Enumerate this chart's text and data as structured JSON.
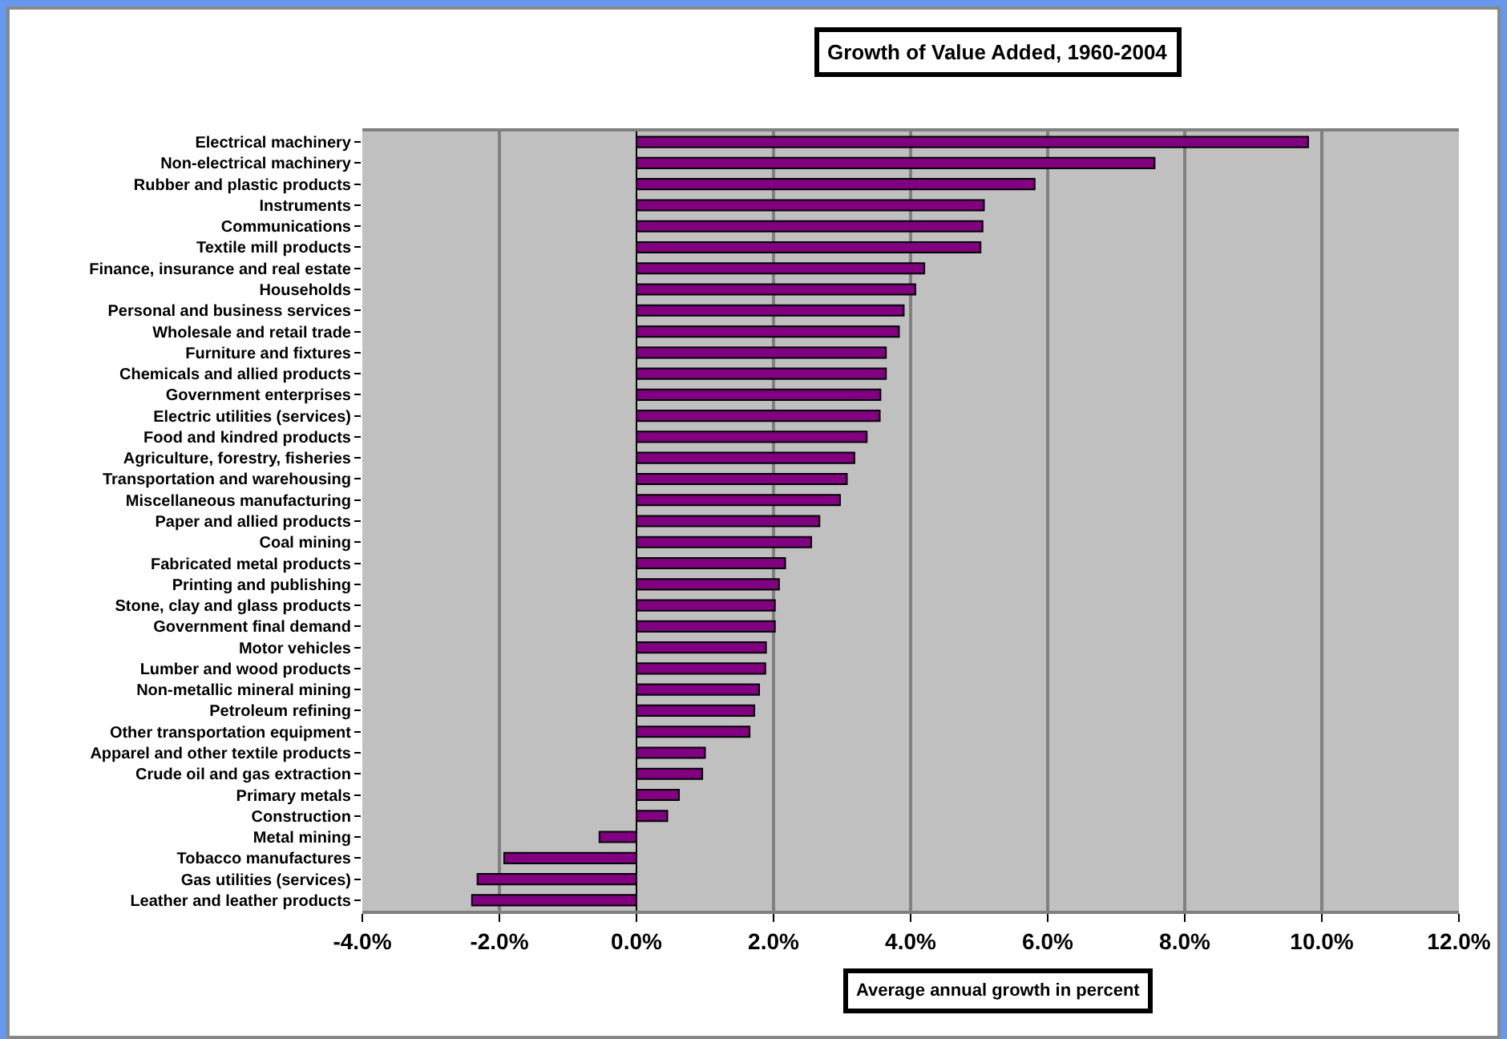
{
  "chart_data": {
    "type": "bar",
    "orientation": "horizontal",
    "title": "Growth of Value Added, 1960-2004",
    "xlabel": "Average annual growth in percent",
    "categories": [
      "Electrical machinery",
      "Non-electrical machinery",
      "Rubber and plastic products",
      "Instruments",
      "Communications",
      "Textile mill products",
      "Finance, insurance and real estate",
      "Households",
      "Personal and business services",
      "Wholesale and retail trade",
      "Furniture and fixtures",
      "Chemicals and allied products",
      "Government enterprises",
      "Electric utilities (services)",
      "Food and kindred products",
      "Agriculture, forestry, fisheries",
      "Transportation and warehousing",
      "Miscellaneous manufacturing",
      "Paper and allied products",
      "Coal mining",
      "Fabricated metal products",
      "Printing and publishing",
      "Stone, clay and glass products",
      "Government final demand",
      "Motor vehicles",
      "Lumber and wood products",
      "Non-metallic mineral mining",
      "Petroleum refining",
      "Other transportation equipment",
      "Apparel and other textile products",
      "Crude oil and gas extraction",
      "Primary metals",
      "Construction",
      "Metal mining",
      "Tobacco manufactures",
      "Gas utilities (services)",
      "Leather and leather products"
    ],
    "values": [
      9.8,
      7.56,
      5.81,
      5.07,
      5.05,
      5.02,
      4.2,
      4.07,
      3.9,
      3.83,
      3.64,
      3.64,
      3.56,
      3.55,
      3.36,
      3.18,
      3.07,
      2.97,
      2.67,
      2.55,
      2.17,
      2.08,
      2.02,
      2.02,
      1.89,
      1.88,
      1.79,
      1.72,
      1.65,
      1.0,
      0.96,
      0.62,
      0.45,
      -0.54,
      -1.93,
      -2.32,
      -2.4
    ],
    "color": "#800080",
    "xlim": [
      -4,
      12
    ],
    "xticks": [
      {
        "value": -4,
        "label": "-4.0%"
      },
      {
        "value": -2,
        "label": "-2.0%"
      },
      {
        "value": 0,
        "label": "0.0%"
      },
      {
        "value": 2,
        "label": "2.0%"
      },
      {
        "value": 4,
        "label": "4.0%"
      },
      {
        "value": 6,
        "label": "6.0%"
      },
      {
        "value": 8,
        "label": "8.0%"
      },
      {
        "value": 10,
        "label": "10.0%"
      },
      {
        "value": 12,
        "label": "12.0%"
      }
    ],
    "grid": "x"
  }
}
